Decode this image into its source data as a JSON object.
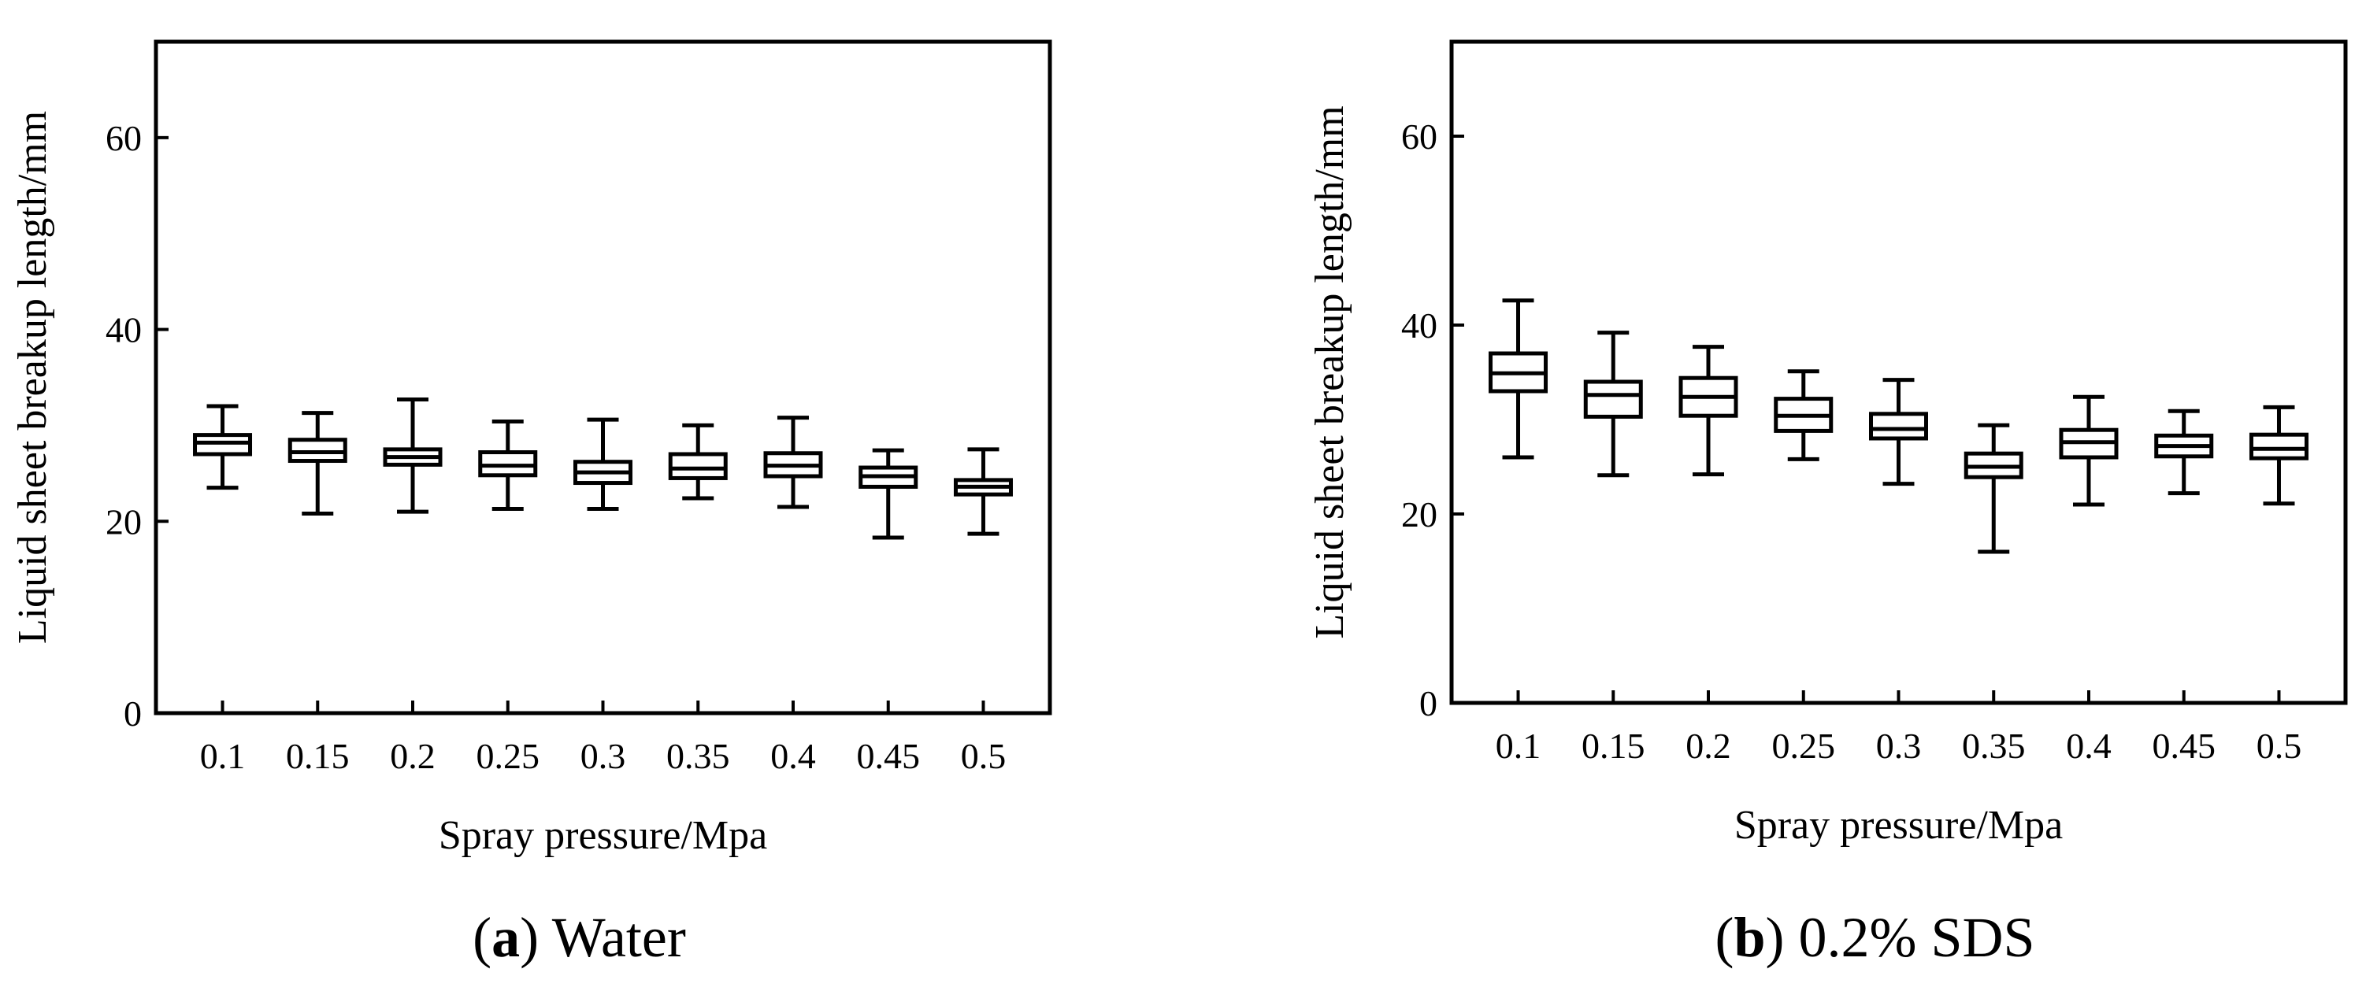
{
  "chart_data": [
    {
      "type": "box",
      "caption": {
        "letter": "a",
        "text": "Water"
      },
      "xlabel": "Spray pressure/Mpa",
      "ylabel": "Liquid sheet breakup length/mm",
      "ylim": [
        0,
        70
      ],
      "yticks": [
        0,
        20,
        40,
        60
      ],
      "categories": [
        "0.1",
        "0.15",
        "0.2",
        "0.25",
        "0.3",
        "0.35",
        "0.4",
        "0.45",
        "0.5"
      ],
      "boxes": [
        {
          "min": 23.5,
          "q1": 27.0,
          "median": 28.2,
          "q3": 29.0,
          "max": 32.0
        },
        {
          "min": 20.8,
          "q1": 26.3,
          "median": 27.2,
          "q3": 28.5,
          "max": 31.3
        },
        {
          "min": 21.0,
          "q1": 25.9,
          "median": 26.7,
          "q3": 27.5,
          "max": 32.7
        },
        {
          "min": 21.3,
          "q1": 24.8,
          "median": 25.8,
          "q3": 27.2,
          "max": 30.4
        },
        {
          "min": 21.3,
          "q1": 24.0,
          "median": 25.1,
          "q3": 26.2,
          "max": 30.6
        },
        {
          "min": 22.4,
          "q1": 24.5,
          "median": 25.5,
          "q3": 27.0,
          "max": 30.0
        },
        {
          "min": 21.5,
          "q1": 24.7,
          "median": 25.8,
          "q3": 27.1,
          "max": 30.8
        },
        {
          "min": 18.3,
          "q1": 23.6,
          "median": 24.7,
          "q3": 25.6,
          "max": 27.4
        },
        {
          "min": 18.7,
          "q1": 22.8,
          "median": 23.6,
          "q3": 24.3,
          "max": 27.5
        }
      ]
    },
    {
      "type": "box",
      "caption": {
        "letter": "b",
        "text": "0.2% SDS"
      },
      "xlabel": "Spray pressure/Mpa",
      "ylabel": "Liquid sheet breakup length/mm",
      "ylim": [
        0,
        70
      ],
      "yticks": [
        0,
        20,
        40,
        60
      ],
      "categories": [
        "0.1",
        "0.15",
        "0.2",
        "0.25",
        "0.3",
        "0.35",
        "0.4",
        "0.45",
        "0.5"
      ],
      "boxes": [
        {
          "min": 26.0,
          "q1": 33.0,
          "median": 34.9,
          "q3": 37.0,
          "max": 42.6
        },
        {
          "min": 24.1,
          "q1": 30.3,
          "median": 32.6,
          "q3": 34.0,
          "max": 39.2
        },
        {
          "min": 24.2,
          "q1": 30.4,
          "median": 32.4,
          "q3": 34.4,
          "max": 37.7
        },
        {
          "min": 25.8,
          "q1": 28.8,
          "median": 30.4,
          "q3": 32.2,
          "max": 35.1
        },
        {
          "min": 23.2,
          "q1": 28.0,
          "median": 29.0,
          "q3": 30.6,
          "max": 34.2
        },
        {
          "min": 16.0,
          "q1": 23.9,
          "median": 25.0,
          "q3": 26.4,
          "max": 29.4
        },
        {
          "min": 21.0,
          "q1": 26.0,
          "median": 27.6,
          "q3": 28.9,
          "max": 32.4
        },
        {
          "min": 22.2,
          "q1": 26.1,
          "median": 27.2,
          "q3": 28.3,
          "max": 30.9
        },
        {
          "min": 21.1,
          "q1": 25.9,
          "median": 26.9,
          "q3": 28.4,
          "max": 31.3
        }
      ]
    }
  ]
}
